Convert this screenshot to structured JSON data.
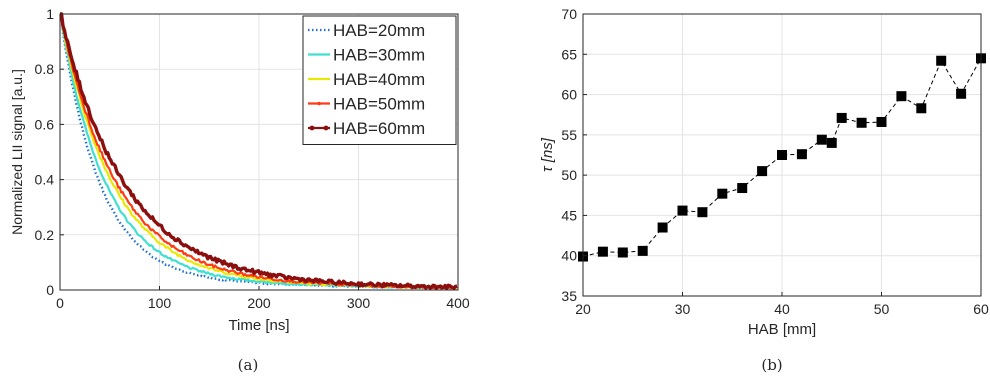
{
  "chart_data": [
    {
      "type": "line",
      "caption": "(a)",
      "xlabel": "Time [ns]",
      "ylabel": "Normalized LII signal [a.u.]",
      "xlim": [
        0,
        400
      ],
      "ylim": [
        0,
        1
      ],
      "xticks": [
        0,
        100,
        200,
        300,
        400
      ],
      "yticks": [
        0,
        0.2,
        0.4,
        0.6,
        0.8,
        1
      ],
      "ytick_labels": [
        "0",
        "0.2",
        "0.4",
        "0.6",
        "0.8",
        "1"
      ],
      "grid": true,
      "legend_position": "top-right",
      "series": [
        {
          "name": "HAB=20mm",
          "color": "#1f6fd8",
          "style": "dotted",
          "tau": 40,
          "noise": 0.004
        },
        {
          "name": "HAB=30mm",
          "color": "#3fe0d0",
          "style": "solid",
          "tau": 46,
          "noise": 0.005
        },
        {
          "name": "HAB=40mm",
          "color": "#e8e800",
          "style": "solid",
          "tau": 53,
          "noise": 0.006
        },
        {
          "name": "HAB=50mm",
          "color": "#ff3a14",
          "style": "solid",
          "tau": 57,
          "noise": 0.007
        },
        {
          "name": "HAB=60mm",
          "color": "#8b0f0f",
          "style": "solid-markers",
          "tau": 65,
          "noise": 0.01
        }
      ]
    },
    {
      "type": "scatter",
      "caption": "(b)",
      "xlabel": "HAB [mm]",
      "ylabel": "τ [ns]",
      "xlim": [
        20,
        60
      ],
      "ylim": [
        35,
        70
      ],
      "xticks": [
        20,
        30,
        40,
        50,
        60
      ],
      "yticks": [
        35,
        40,
        45,
        50,
        55,
        60,
        65,
        70
      ],
      "grid": true,
      "line_style": "dashed",
      "marker": "square",
      "x": [
        20,
        22,
        24,
        26,
        28,
        30,
        32,
        34,
        36,
        38,
        40,
        42,
        44,
        45,
        46,
        48,
        50,
        52,
        54,
        56,
        58,
        60
      ],
      "y": [
        39.9,
        40.5,
        40.4,
        40.6,
        43.5,
        45.6,
        45.4,
        47.7,
        48.4,
        50.5,
        52.5,
        52.6,
        54.4,
        54.0,
        57.1,
        56.5,
        56.6,
        59.8,
        58.3,
        64.2,
        60.1,
        64.5
      ]
    }
  ]
}
